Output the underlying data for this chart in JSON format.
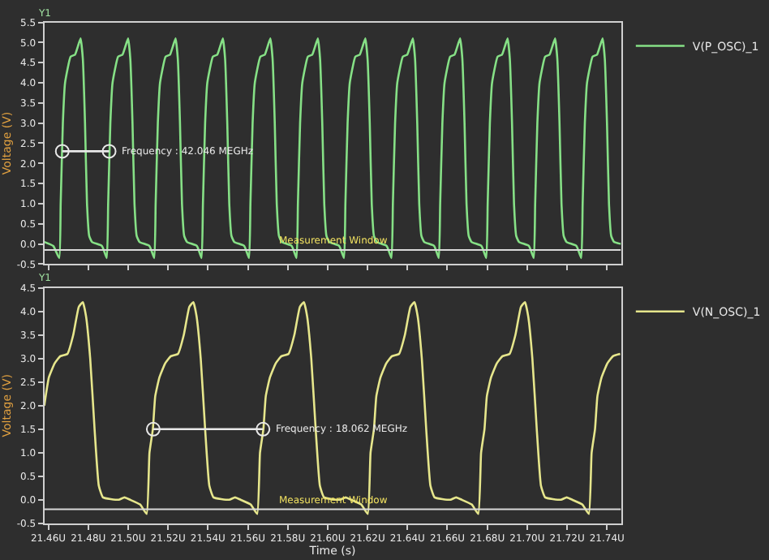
{
  "chart_data": [
    {
      "type": "line",
      "ylabel": "Voltage (V)",
      "annotations": [
        "Y1",
        {
          "text": "Frequency : 42.046 MEGHz",
          "x": 21.4905,
          "y": 2.3
        }
      ],
      "xlim": [
        21.458,
        21.747
      ],
      "ylim": [
        -0.5,
        5.5
      ],
      "tick_labels": "y",
      "legend": "right",
      "xticks": [
        {
          "value": 21.46,
          "label": null
        },
        {
          "value": 21.48,
          "label": null
        },
        {
          "value": 21.5,
          "label": null
        },
        {
          "value": 21.52,
          "label": null
        },
        {
          "value": 21.54,
          "label": null
        },
        {
          "value": 21.56,
          "label": null
        },
        {
          "value": 21.58,
          "label": null
        },
        {
          "value": 21.6,
          "label": null
        },
        {
          "value": 21.62,
          "label": null
        },
        {
          "value": 21.64,
          "label": null
        },
        {
          "value": 21.66,
          "label": null
        },
        {
          "value": 21.68,
          "label": null
        },
        {
          "value": 21.7,
          "label": null
        },
        {
          "value": 21.72,
          "label": null
        },
        {
          "value": 21.74,
          "label": null
        }
      ],
      "yticks": [
        {
          "value": -0.5,
          "label": "-0.5"
        },
        {
          "value": 0,
          "label": "0.0"
        },
        {
          "value": 0.5,
          "label": "0.5"
        },
        {
          "value": 1,
          "label": "1.0"
        },
        {
          "value": 1.5,
          "label": "1.5"
        },
        {
          "value": 2,
          "label": "2.0"
        },
        {
          "value": 2.5,
          "label": "2.5"
        },
        {
          "value": 3,
          "label": "3.0"
        },
        {
          "value": 3.5,
          "label": "3.5"
        },
        {
          "value": 4,
          "label": "4.0"
        },
        {
          "value": 4.5,
          "label": "4.5"
        },
        {
          "value": 5,
          "label": "5.0"
        },
        {
          "value": 5.5,
          "label": "5.5"
        }
      ],
      "ref_lines": [
        {
          "axis": "y",
          "value": -0.15,
          "label": "Measurement Window",
          "color": "#d8d8d8"
        }
      ],
      "series": [
        {
          "name": "V(P_OSC)_1",
          "color": "#86e086",
          "x": [
            21.458,
            21.4625,
            21.4655,
            21.4662,
            21.4673,
            21.4684,
            21.4712,
            21.4734,
            21.4748,
            21.4762,
            21.4773,
            21.4784,
            21.4794,
            21.4805,
            21.4819,
            21.4869,
            21.4893,
            21.49,
            21.4911,
            21.4922,
            21.495,
            21.4972,
            21.4986,
            21.5,
            21.5011,
            21.5022,
            21.5032,
            21.5043,
            21.5057,
            21.5107,
            21.5131,
            21.5138,
            21.5149,
            21.516,
            21.5188,
            21.521,
            21.5224,
            21.5238,
            21.5249,
            21.526,
            21.527,
            21.5281,
            21.5295,
            21.5345,
            21.5368,
            21.5375,
            21.5386,
            21.5397,
            21.5425,
            21.5447,
            21.5461,
            21.5475,
            21.5486,
            21.5497,
            21.5507,
            21.5518,
            21.5532,
            21.5582,
            21.5606,
            21.5613,
            21.5624,
            21.5635,
            21.5663,
            21.5685,
            21.5699,
            21.5713,
            21.5724,
            21.5735,
            21.5745,
            21.5756,
            21.577,
            21.582,
            21.5844,
            21.5851,
            21.5862,
            21.5873,
            21.5901,
            21.5923,
            21.5937,
            21.5951,
            21.5962,
            21.5973,
            21.5983,
            21.5994,
            21.6008,
            21.6058,
            21.6082,
            21.6089,
            21.61,
            21.6111,
            21.6139,
            21.6161,
            21.6175,
            21.6189,
            21.62,
            21.6211,
            21.6221,
            21.6232,
            21.6246,
            21.6296,
            21.632,
            21.6327,
            21.6338,
            21.6349,
            21.6377,
            21.6399,
            21.6413,
            21.6427,
            21.6438,
            21.6449,
            21.6459,
            21.647,
            21.6484,
            21.6534,
            21.6557,
            21.6564,
            21.6575,
            21.6586,
            21.6614,
            21.6636,
            21.665,
            21.6664,
            21.6675,
            21.6686,
            21.6696,
            21.6707,
            21.6721,
            21.6771,
            21.6795,
            21.6802,
            21.6813,
            21.6824,
            21.6852,
            21.6874,
            21.6888,
            21.6902,
            21.6913,
            21.6924,
            21.6934,
            21.6945,
            21.6959,
            21.7009,
            21.7033,
            21.704,
            21.7051,
            21.7062,
            21.709,
            21.7112,
            21.7126,
            21.714,
            21.7151,
            21.7162,
            21.7172,
            21.7183,
            21.7197,
            21.7247,
            21.7271,
            21.7278,
            21.7289,
            21.73,
            21.7328,
            21.735,
            21.7364,
            21.7378,
            21.7389,
            21.74,
            21.741,
            21.7421,
            21.7435,
            21.747
          ],
          "values": [
            0.05,
            -0.05,
            -0.35,
            1.0,
            3.0,
            4.0,
            4.65,
            4.7,
            4.9,
            5.1,
            4.6,
            3.0,
            1.0,
            0.2,
            0.05,
            -0.05,
            -0.35,
            1.0,
            3.0,
            4.0,
            4.65,
            4.7,
            4.9,
            5.1,
            4.6,
            3.0,
            1.0,
            0.2,
            0.05,
            -0.05,
            -0.35,
            1.0,
            3.0,
            4.0,
            4.65,
            4.7,
            4.9,
            5.1,
            4.6,
            3.0,
            1.0,
            0.2,
            0.05,
            -0.05,
            -0.35,
            1.0,
            3.0,
            4.0,
            4.65,
            4.7,
            4.9,
            5.1,
            4.6,
            3.0,
            1.0,
            0.2,
            0.05,
            -0.05,
            -0.35,
            1.0,
            3.0,
            4.0,
            4.65,
            4.7,
            4.9,
            5.1,
            4.6,
            3.0,
            1.0,
            0.2,
            0.05,
            -0.05,
            -0.35,
            1.0,
            3.0,
            4.0,
            4.65,
            4.7,
            4.9,
            5.1,
            4.6,
            3.0,
            1.0,
            0.2,
            0.05,
            -0.05,
            -0.35,
            1.0,
            3.0,
            4.0,
            4.65,
            4.7,
            4.9,
            5.1,
            4.6,
            3.0,
            1.0,
            0.2,
            0.05,
            -0.05,
            -0.35,
            1.0,
            3.0,
            4.0,
            4.65,
            4.7,
            4.9,
            5.1,
            4.6,
            3.0,
            1.0,
            0.2,
            0.05,
            -0.05,
            -0.35,
            1.0,
            3.0,
            4.0,
            4.65,
            4.7,
            4.9,
            5.1,
            4.6,
            3.0,
            1.0,
            0.2,
            0.05,
            -0.05,
            -0.35,
            1.0,
            3.0,
            4.0,
            4.65,
            4.7,
            4.9,
            5.1,
            4.6,
            3.0,
            1.0,
            0.2,
            0.05,
            -0.05,
            -0.35,
            1.0,
            3.0,
            4.0,
            4.65,
            4.7,
            4.9,
            5.1,
            4.6,
            3.0,
            1.0,
            0.2,
            0.05,
            -0.05,
            -0.35,
            1.0,
            3.0,
            4.0,
            4.65,
            4.7,
            4.9,
            5.1,
            4.6,
            3.0,
            1.0,
            0.2,
            0.05,
            0.0
          ]
        },
        {
          "color": "#e8e8e8",
          "marker": "circle",
          "x": [
            21.467,
            21.4905
          ],
          "values": [
            2.3,
            2.3
          ]
        }
      ]
    },
    {
      "type": "line",
      "xlabel": "Time (s)",
      "ylabel": "Voltage (V)",
      "annotations": [
        "Y1",
        {
          "text": "Frequency : 18.062 MEGHz",
          "x": 21.5676,
          "y": 1.5
        }
      ],
      "xlim": [
        21.458,
        21.747
      ],
      "ylim": [
        -0.5,
        4.5
      ],
      "legend": "right",
      "xticks": [
        {
          "value": 21.46,
          "label": "21.46U"
        },
        {
          "value": 21.48,
          "label": "21.48U"
        },
        {
          "value": 21.5,
          "label": "21.50U"
        },
        {
          "value": 21.52,
          "label": "21.52U"
        },
        {
          "value": 21.54,
          "label": "21.54U"
        },
        {
          "value": 21.56,
          "label": "21.56U"
        },
        {
          "value": 21.58,
          "label": "21.58U"
        },
        {
          "value": 21.6,
          "label": "21.60U"
        },
        {
          "value": 21.62,
          "label": "21.62U"
        },
        {
          "value": 21.64,
          "label": "21.64U"
        },
        {
          "value": 21.66,
          "label": "21.66U"
        },
        {
          "value": 21.68,
          "label": "21.68U"
        },
        {
          "value": 21.7,
          "label": "21.70U"
        },
        {
          "value": 21.72,
          "label": "21.72U"
        },
        {
          "value": 21.74,
          "label": "21.74U"
        }
      ],
      "yticks": [
        {
          "value": -0.5,
          "label": "-0.5"
        },
        {
          "value": 0,
          "label": "0.0"
        },
        {
          "value": 0.5,
          "label": "0.5"
        },
        {
          "value": 1,
          "label": "1.0"
        },
        {
          "value": 1.5,
          "label": "1.5"
        },
        {
          "value": 2,
          "label": "2.0"
        },
        {
          "value": 2.5,
          "label": "2.5"
        },
        {
          "value": 3,
          "label": "3.0"
        },
        {
          "value": 3.5,
          "label": "3.5"
        },
        {
          "value": 4,
          "label": "4.0"
        },
        {
          "value": 4.5,
          "label": "4.5"
        }
      ],
      "ref_lines": [
        {
          "axis": "y",
          "value": -0.2,
          "label": "Measurement Window",
          "color": "#d8d8d8"
        }
      ],
      "series": [
        {
          "name": "V(N_OSC)_1",
          "color": "#e6e68c",
          "x": [
            21.458,
            21.4603,
            21.4632,
            21.466,
            21.4696,
            21.4725,
            21.4753,
            21.4773,
            21.4789,
            21.481,
            21.4832,
            21.4853,
            21.4874,
            21.4953,
            21.4982,
            21.501,
            21.506,
            21.5093,
            21.5107,
            21.5124,
            21.5136,
            21.5157,
            21.5186,
            21.5214,
            21.525,
            21.5279,
            21.5307,
            21.5327,
            21.5343,
            21.5364,
            21.5386,
            21.5407,
            21.5428,
            21.5507,
            21.5536,
            21.5564,
            21.5614,
            21.5647,
            21.5661,
            21.5678,
            21.569,
            21.5711,
            21.574,
            21.5768,
            21.5804,
            21.5833,
            21.5861,
            21.5881,
            21.5897,
            21.5918,
            21.594,
            21.5961,
            21.5982,
            21.6061,
            21.609,
            21.6118,
            21.6168,
            21.6201,
            21.6215,
            21.6232,
            21.6244,
            21.6265,
            21.6294,
            21.6322,
            21.6358,
            21.6387,
            21.6415,
            21.6435,
            21.6451,
            21.6472,
            21.6494,
            21.6515,
            21.6536,
            21.6615,
            21.6644,
            21.6672,
            21.6722,
            21.6755,
            21.6769,
            21.6786,
            21.6798,
            21.6819,
            21.6848,
            21.6876,
            21.6912,
            21.6941,
            21.6969,
            21.6989,
            21.7005,
            21.7026,
            21.7048,
            21.7069,
            21.709,
            21.7169,
            21.7198,
            21.7226,
            21.7276,
            21.7309,
            21.7323,
            21.734,
            21.7352,
            21.7373,
            21.7402,
            21.743,
            21.7466
          ],
          "values": [
            2.0,
            2.6,
            2.9,
            3.05,
            3.1,
            3.5,
            4.1,
            4.2,
            3.9,
            3.0,
            1.5,
            0.3,
            0.05,
            0.0,
            0.05,
            0.0,
            -0.1,
            -0.3,
            1.0,
            1.5,
            2.2,
            2.6,
            2.9,
            3.05,
            3.1,
            3.5,
            4.1,
            4.2,
            3.9,
            3.0,
            1.5,
            0.3,
            0.05,
            0.0,
            0.05,
            0.0,
            -0.1,
            -0.3,
            1.0,
            1.5,
            2.2,
            2.6,
            2.9,
            3.05,
            3.1,
            3.5,
            4.1,
            4.2,
            3.9,
            3.0,
            1.5,
            0.3,
            0.05,
            0.0,
            0.05,
            0.0,
            -0.1,
            -0.3,
            1.0,
            1.5,
            2.2,
            2.6,
            2.9,
            3.05,
            3.1,
            3.5,
            4.1,
            4.2,
            3.9,
            3.0,
            1.5,
            0.3,
            0.05,
            0.0,
            0.05,
            0.0,
            -0.1,
            -0.3,
            1.0,
            1.5,
            2.2,
            2.6,
            2.9,
            3.05,
            3.1,
            3.5,
            4.1,
            4.2,
            3.9,
            3.0,
            1.5,
            0.3,
            0.05,
            0.0,
            0.05,
            0.0,
            -0.1,
            -0.3,
            1.0,
            1.5,
            2.2,
            2.6,
            2.9,
            3.05,
            3.1
          ]
        },
        {
          "color": "#e8e8e8",
          "marker": "circle",
          "x": [
            21.5126,
            21.5676
          ],
          "values": [
            1.5,
            1.5
          ]
        }
      ]
    }
  ]
}
